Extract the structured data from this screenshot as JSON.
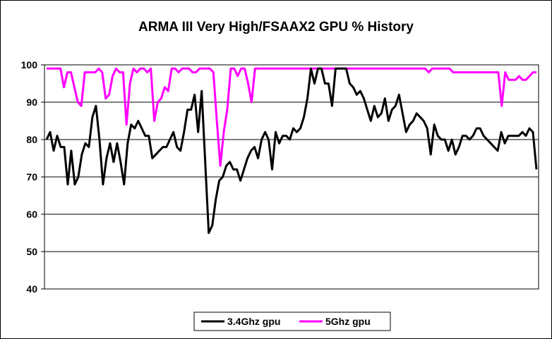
{
  "chart_data": {
    "type": "line",
    "title": "ARMA III Very High/FSAAX2 GPU % History",
    "xlabel": "",
    "ylabel": "",
    "ylim": [
      40,
      100
    ],
    "yticks": [
      40,
      50,
      60,
      70,
      80,
      90,
      100
    ],
    "grid": true,
    "legend_position": "bottom",
    "series": [
      {
        "name": "3.4Ghz gpu",
        "color": "#000000",
        "values": [
          80,
          82,
          77,
          81,
          78,
          78,
          68,
          77,
          68,
          70,
          76,
          79,
          78,
          86,
          89,
          80,
          68,
          75,
          79,
          74,
          79,
          74,
          68,
          79,
          84,
          83,
          85,
          83,
          81,
          81,
          75,
          76,
          77,
          78,
          78,
          80,
          82,
          78,
          77,
          82,
          88,
          88,
          92,
          82,
          93,
          74,
          55,
          57,
          64,
          69,
          70,
          73,
          74,
          72,
          72,
          69,
          72,
          75,
          77,
          78,
          75,
          80,
          82,
          80,
          72,
          82,
          79,
          81,
          81,
          80,
          83,
          82,
          83,
          86,
          91,
          99,
          95,
          99,
          99,
          95,
          95,
          89,
          99,
          99,
          99,
          99,
          95,
          94,
          92,
          93,
          91,
          88,
          85,
          89,
          86,
          87,
          91,
          85,
          88,
          89,
          92,
          87,
          82,
          84,
          85,
          87,
          86,
          85,
          83,
          76,
          84,
          81,
          80,
          80,
          77,
          80,
          76,
          78,
          81,
          81,
          80,
          81,
          83,
          83,
          81,
          80,
          79,
          78,
          77,
          82,
          79,
          81,
          81,
          81,
          81,
          82,
          81,
          83,
          82,
          72
        ]
      },
      {
        "name": "5Ghz gpu",
        "color": "#ff00ff",
        "values": [
          99,
          99,
          99,
          99,
          99,
          94,
          98,
          98,
          94,
          90,
          89,
          98,
          98,
          98,
          98,
          99,
          98,
          91,
          92,
          97,
          99,
          98,
          98,
          84,
          95,
          99,
          98,
          99,
          99,
          98,
          99,
          85,
          90,
          91,
          94,
          93,
          99,
          99,
          98,
          99,
          99,
          99,
          98,
          98,
          99,
          99,
          99,
          99,
          98,
          85,
          73,
          82,
          88,
          99,
          99,
          97,
          99,
          99,
          95,
          90,
          99,
          99,
          99,
          99,
          99,
          99,
          99,
          99,
          99,
          99,
          99,
          99,
          99,
          99,
          99,
          99,
          99,
          99,
          99,
          99,
          99,
          99,
          99,
          99,
          99,
          99,
          99,
          99,
          99,
          99,
          99,
          99,
          99,
          99,
          99,
          99,
          99,
          99,
          99,
          99,
          99,
          99,
          99,
          99,
          99,
          99,
          99,
          99,
          99,
          99,
          98,
          99,
          99,
          99,
          99,
          99,
          99,
          98,
          98,
          98,
          98,
          98,
          98,
          98,
          98,
          98,
          98,
          98,
          98,
          98,
          98,
          89,
          98,
          96,
          96,
          96,
          97,
          96,
          96,
          97,
          98,
          98
        ]
      }
    ]
  }
}
